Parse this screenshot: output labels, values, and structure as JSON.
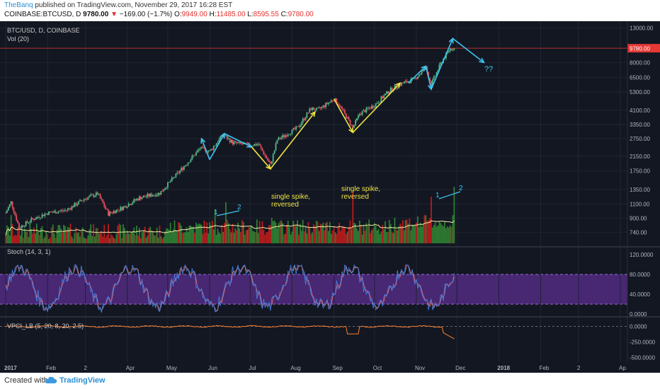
{
  "header": {
    "user": "TheBanq",
    "published": "published on TradingView.com, November 29, 2017 16:28 EST",
    "symbol": "COINBASE:BTCUSD, D",
    "last": "9780.00",
    "change_arrow": "▼",
    "change": "−169.00 (−1.7%)",
    "open_label": "O:",
    "open": "9949.00",
    "high_label": "H:",
    "high": "11485.00",
    "low_label": "L:",
    "low": "8595.55",
    "close_label": "C:",
    "close": "9780.00"
  },
  "footer": {
    "created_with": "Created with",
    "brand": "TradingView"
  },
  "chart_data": {
    "type": "candlestick",
    "symbol_label": "BTC/USD, D, COINBASE",
    "volume_label": "Vol (20)",
    "price_axis": {
      "scale": "log",
      "range": [
        640,
        14000
      ],
      "ticks": [
        "13000.00",
        "9780.00",
        "8000.00",
        "6500.00",
        "5300.00",
        "4100.00",
        "3350.00",
        "2750.00",
        "2150.00",
        "1750.00",
        "1350.00",
        "1100.00",
        "900.00",
        "740.00"
      ],
      "tick_values": [
        13000,
        9780,
        8000,
        6500,
        5300,
        4100,
        3350,
        2750,
        2150,
        1750,
        1350,
        1100,
        900,
        740
      ],
      "last_price": "9780.00"
    },
    "time_axis": [
      "2017",
      "Feb",
      "2",
      "Apr",
      "May",
      "Jun",
      "Jul",
      "Aug",
      "Sep",
      "Oct",
      "Nov",
      "Dec",
      "2018",
      "Feb",
      "2",
      "Ap"
    ],
    "close_path": [
      {
        "date": "2017-01-01",
        "close": 970
      },
      {
        "date": "2017-01-05",
        "close": 1130
      },
      {
        "date": "2017-01-11",
        "close": 790
      },
      {
        "date": "2017-01-20",
        "close": 880
      },
      {
        "date": "2017-02-01",
        "close": 970
      },
      {
        "date": "2017-02-15",
        "close": 1010
      },
      {
        "date": "2017-03-01",
        "close": 1190
      },
      {
        "date": "2017-03-10",
        "close": 1270
      },
      {
        "date": "2017-03-18",
        "close": 960
      },
      {
        "date": "2017-03-28",
        "close": 1040
      },
      {
        "date": "2017-04-10",
        "close": 1200
      },
      {
        "date": "2017-04-25",
        "close": 1280
      },
      {
        "date": "2017-05-10",
        "close": 1750
      },
      {
        "date": "2017-05-25",
        "close": 2400
      },
      {
        "date": "2017-06-01",
        "close": 2300
      },
      {
        "date": "2017-06-11",
        "close": 2900
      },
      {
        "date": "2017-06-18",
        "close": 2600
      },
      {
        "date": "2017-06-30",
        "close": 2500
      },
      {
        "date": "2017-07-07",
        "close": 2550
      },
      {
        "date": "2017-07-16",
        "close": 1900
      },
      {
        "date": "2017-07-21",
        "close": 2700
      },
      {
        "date": "2017-08-05",
        "close": 3200
      },
      {
        "date": "2017-08-15",
        "close": 4200
      },
      {
        "date": "2017-08-20",
        "close": 4100
      },
      {
        "date": "2017-09-01",
        "close": 4800
      },
      {
        "date": "2017-09-05",
        "close": 4400
      },
      {
        "date": "2017-09-15",
        "close": 3200
      },
      {
        "date": "2017-09-20",
        "close": 3900
      },
      {
        "date": "2017-10-01",
        "close": 4400
      },
      {
        "date": "2017-10-12",
        "close": 5400
      },
      {
        "date": "2017-10-20",
        "close": 5900
      },
      {
        "date": "2017-10-30",
        "close": 6300
      },
      {
        "date": "2017-11-08",
        "close": 7400
      },
      {
        "date": "2017-11-12",
        "close": 5900
      },
      {
        "date": "2017-11-20",
        "close": 8200
      },
      {
        "date": "2017-11-26",
        "close": 9700
      },
      {
        "date": "2017-11-29",
        "close": 9780
      }
    ],
    "annotations": {
      "question_marks": "??",
      "spike_note_1": [
        "single spike,",
        "reversed"
      ],
      "spike_note_2": [
        "single spike,",
        "reversed"
      ],
      "vol_mark_1": "1",
      "vol_mark_2": "2",
      "vol_mark_3": "1",
      "vol_mark_4": "2"
    },
    "stoch": {
      "label": "Stoch (14, 3, 1)",
      "range": [
        0,
        130
      ],
      "ticks": [
        "120.0000",
        "80.0000",
        "40.0000",
        "0.0000"
      ],
      "tick_values": [
        120,
        80,
        40,
        0
      ],
      "band": [
        20,
        80
      ]
    },
    "vpci": {
      "label": "VPCI_LB (5, 20, 8, 20, 2.5)",
      "range": [
        -550,
        120
      ],
      "ticks": [
        "0.0000",
        "-250.0000",
        "-500.0000"
      ],
      "tick_values": [
        0,
        -250,
        -500
      ]
    },
    "colors": {
      "background": "#131722",
      "up": "#53b987",
      "down": "#eb4d5c",
      "volume_up": "#2e7d32",
      "volume_down": "#b71c1c",
      "cyan_arrow": "#3ec5f0",
      "yellow_arrow": "#f0e442",
      "stoch_k": "#3d7fe0",
      "stoch_d": "#e07070",
      "stoch_band": "#5b2d8f",
      "vpci": "#ff7f2a",
      "last_price": "#e53935"
    }
  }
}
